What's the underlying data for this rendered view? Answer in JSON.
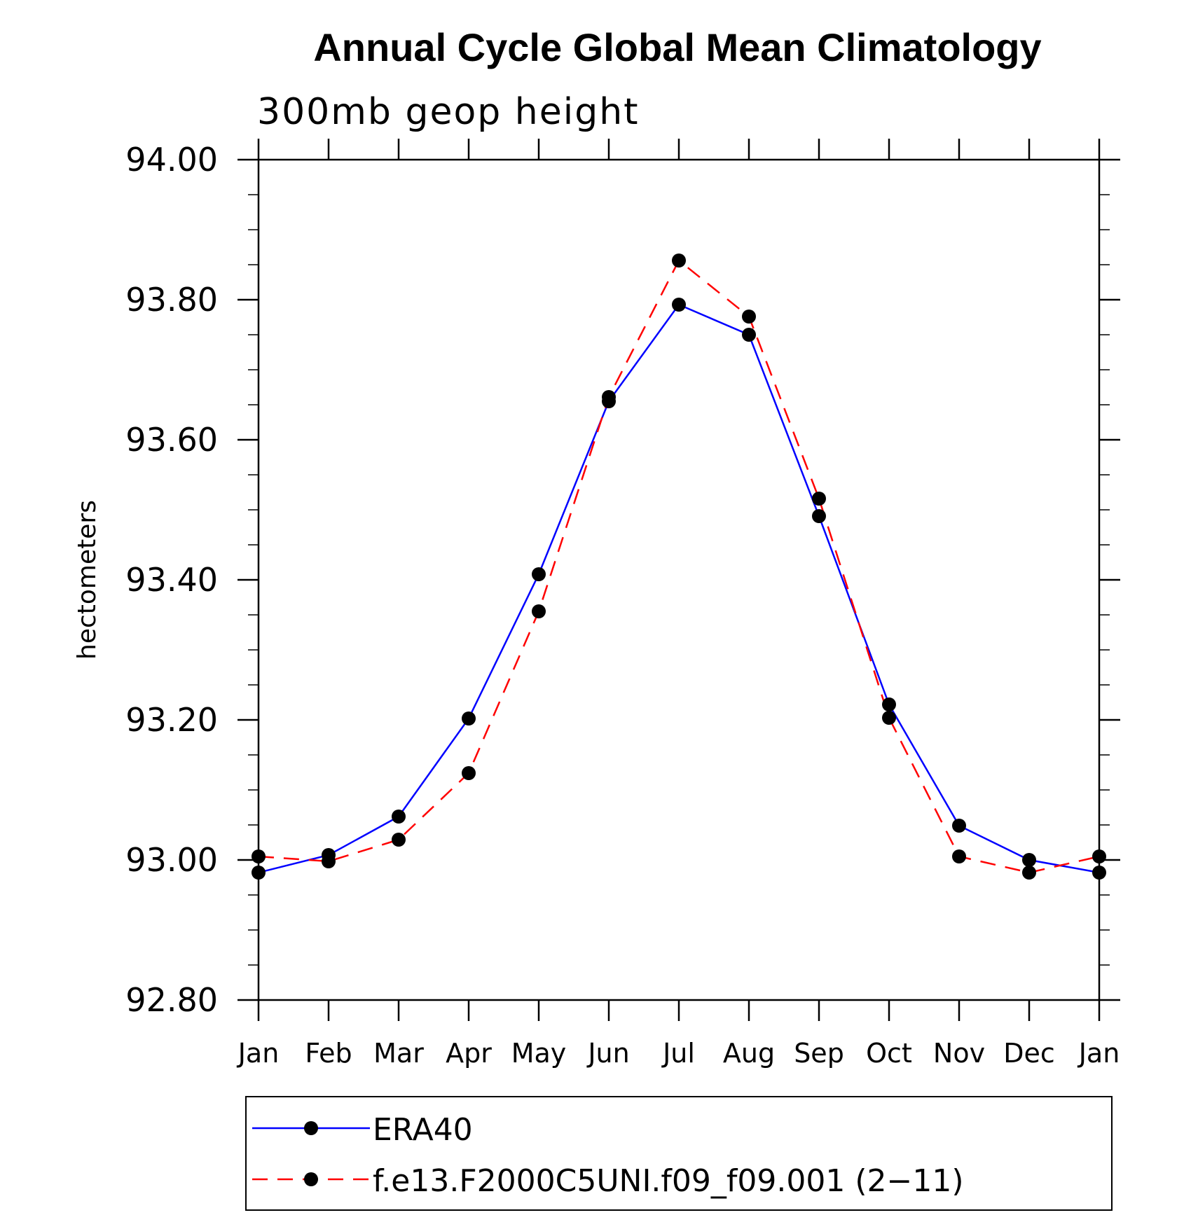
{
  "chart_data": {
    "type": "line",
    "title": "Annual Cycle Global Mean Climatology",
    "subtitle": "300mb geop height",
    "ylabel": "hectometers",
    "xlabel": "",
    "categories": [
      "Jan",
      "Feb",
      "Mar",
      "Apr",
      "May",
      "Jun",
      "Jul",
      "Aug",
      "Sep",
      "Oct",
      "Nov",
      "Dec",
      "Jan"
    ],
    "ylim": [
      92.8,
      94.0
    ],
    "yticks": [
      "94.00",
      "93.80",
      "93.60",
      "93.40",
      "93.20",
      "93.00",
      "92.80"
    ],
    "ytick_values": [
      94.0,
      93.8,
      93.6,
      93.4,
      93.2,
      93.0,
      92.8
    ],
    "series": [
      {
        "name": "ERA40",
        "color": "#0000ff",
        "dash": "solid",
        "marker": "circle",
        "values": [
          92.982,
          93.007,
          93.062,
          93.202,
          93.408,
          93.655,
          93.793,
          93.75,
          93.491,
          93.222,
          93.049,
          93.0,
          92.982
        ]
      },
      {
        "name": "f.e13.F2000C5UNI.f09_f09.001 (2−11)",
        "color": "#ff0000",
        "dash": "dashed",
        "marker": "circle",
        "values": [
          93.005,
          92.998,
          93.029,
          93.124,
          93.355,
          93.661,
          93.856,
          93.776,
          93.516,
          93.203,
          93.005,
          92.982,
          93.005
        ]
      }
    ],
    "legend_position": "bottom"
  }
}
